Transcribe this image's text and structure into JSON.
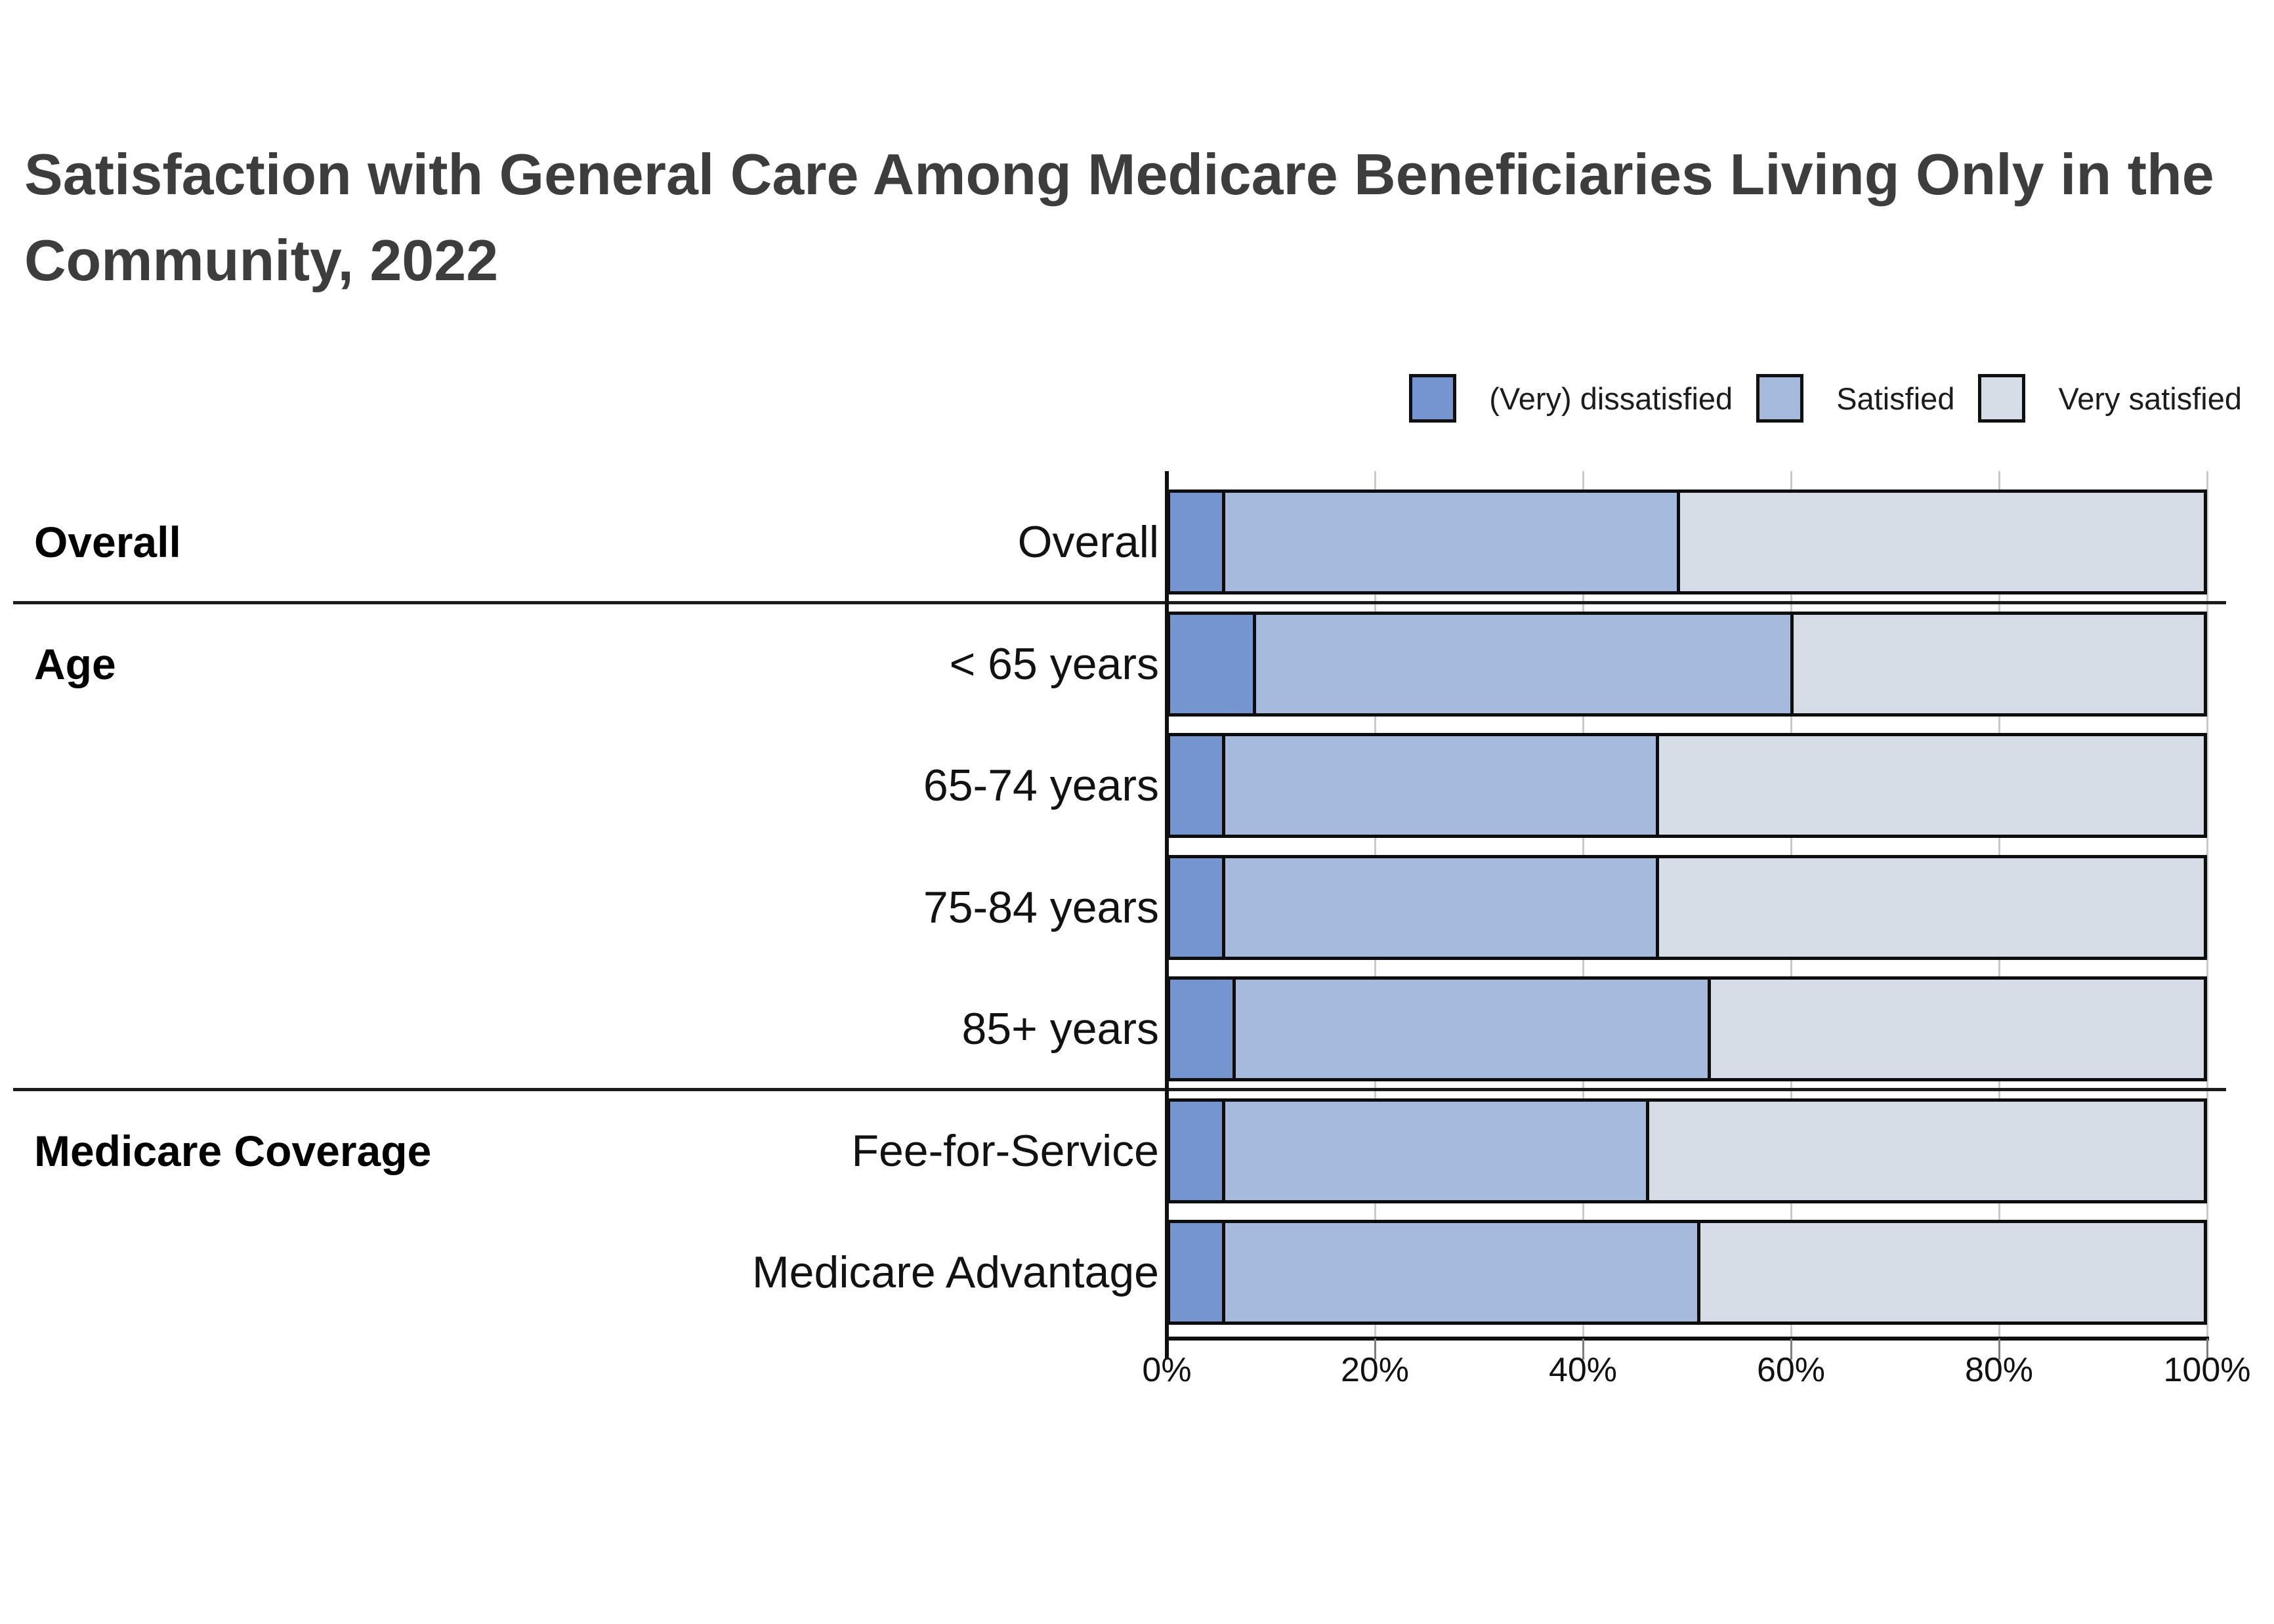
{
  "title": "Satisfaction with General Care Among Medicare Beneficiaries Living Only in the Community, 2022",
  "legend": [
    {
      "label": "(Very) dissatisfied",
      "color": "#7495d0",
      "icon": "legend-swatch-dissatisfied"
    },
    {
      "label": "Satisfied",
      "color": "#a6badd",
      "icon": "legend-swatch-satisfied"
    },
    {
      "label": "Very satisfied",
      "color": "#d6dce6",
      "icon": "legend-swatch-very-satisfied"
    }
  ],
  "chart_data": {
    "type": "bar",
    "orientation": "horizontal",
    "stacked": true,
    "title": "Satisfaction with General Care Among Medicare Beneficiaries Living Only in the Community, 2022",
    "categories": [
      "Overall",
      "< 65 years",
      "65-74 years",
      "75-84 years",
      "85+ years",
      "Fee-for-Service",
      "Medicare Advantage"
    ],
    "sections": [
      {
        "label": "Overall",
        "label_row": 0
      },
      {
        "label": "Age",
        "label_row": 1
      },
      {
        "label": "Medicare Coverage",
        "label_row": 5
      }
    ],
    "dividers_after_rows": [
      0,
      4
    ],
    "series": [
      {
        "name": "(Very) dissatisfied",
        "color": "#7495d0",
        "values": [
          5,
          8,
          5,
          5,
          6,
          5,
          5
        ]
      },
      {
        "name": "Satisfied",
        "color": "#a6badd",
        "values": [
          44,
          52,
          42,
          42,
          46,
          41,
          46
        ]
      },
      {
        "name": "Very satisfied",
        "color": "#d6dce6",
        "values": [
          51,
          40,
          53,
          53,
          48,
          54,
          49
        ]
      }
    ],
    "xlabel": "",
    "ylabel": "",
    "xlim": [
      0,
      100
    ],
    "x_ticks": [
      "0%",
      "20%",
      "40%",
      "60%",
      "80%",
      "100%"
    ],
    "x_tick_values": [
      0,
      20,
      40,
      60,
      80,
      100
    ],
    "grid": "vertical-light",
    "legend_position": "top-right",
    "bar_border_color": "#0d0d0d"
  }
}
